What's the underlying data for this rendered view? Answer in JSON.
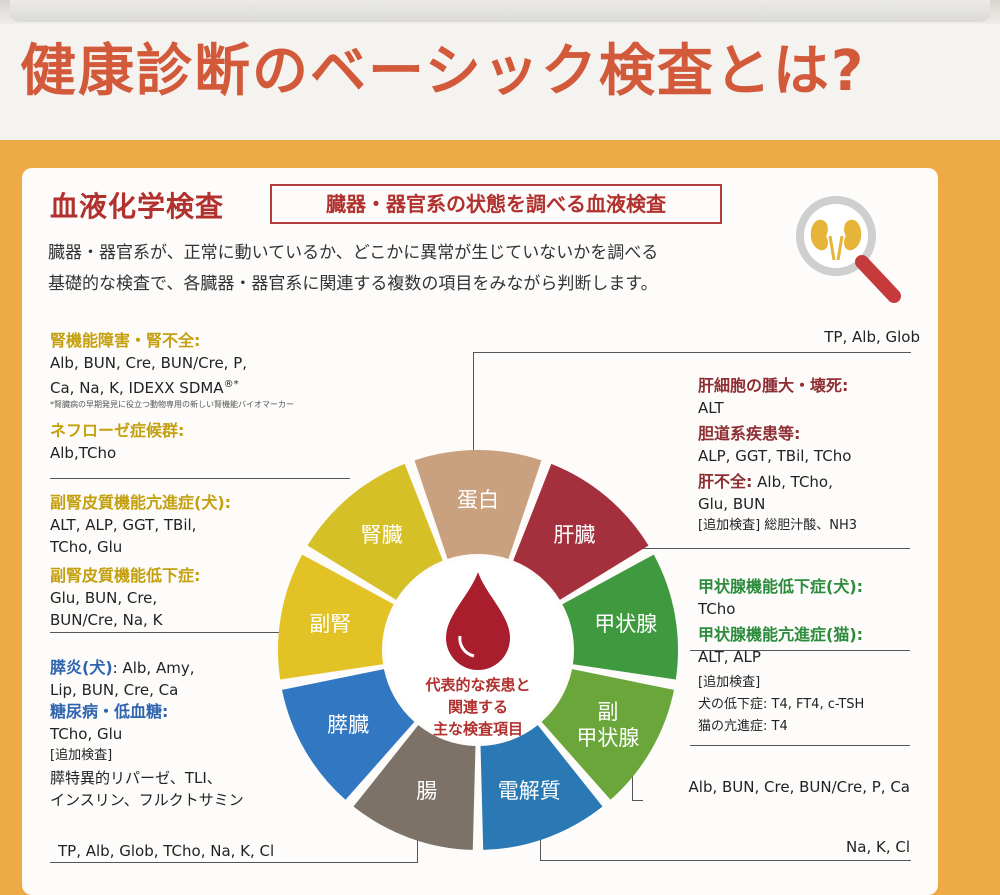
{
  "title": "健康診断のベーシック検査とは?",
  "section": {
    "title": "血液化学検査",
    "subtitle": "臓器・器官系の状態を調べる血液検査",
    "intro_line1": "臓器・器官系が、正常に動いているか、どこかに異常が生じていないかを調べる",
    "intro_line2": "基礎的な検査で、各臓器・器官系に関連する複数の項目をみながら判断します。"
  },
  "wheel": {
    "center_line1": "代表的な疾患と",
    "center_line2": "関連する",
    "center_line3": "主な検査項目",
    "segments": [
      {
        "label": "蛋白",
        "color": "#c9a17e"
      },
      {
        "label": "肝臓",
        "color": "#a5303d"
      },
      {
        "label": "甲状腺",
        "color": "#3f9a3f"
      },
      {
        "label": "副\n甲状腺",
        "color": "#6aa63a"
      },
      {
        "label": "電解質",
        "color": "#2a79b4"
      },
      {
        "label": "腸",
        "color": "#7c7268"
      },
      {
        "label": "膵臓",
        "color": "#3277c2"
      },
      {
        "label": "副腎",
        "color": "#e2c225"
      },
      {
        "label": "腎臓",
        "color": "#d6c028"
      }
    ]
  },
  "left": {
    "kidney_title": "腎機能障害・腎不全:",
    "kidney_items1": "Alb, BUN, Cre, BUN/Cre, P,",
    "kidney_items2": "Ca, Na, K, IDEXX SDMA",
    "kidney_reg": "®*",
    "kidney_note": "*腎臓病の早期発見に役立つ動物専用の新しい腎機能バイオマーカー",
    "nephrotic_title": "ネフローゼ症候群:",
    "nephrotic_items": "Alb,TCho",
    "adrenal_hyper_title": "副腎皮質機能亢進症(犬):",
    "adrenal_hyper_items1": "ALT, ALP, GGT, TBil,",
    "adrenal_hyper_items2": "TCho, Glu",
    "adrenal_hypo_title": "副腎皮質機能低下症:",
    "adrenal_hypo_items1": "Glu, BUN, Cre,",
    "adrenal_hypo_items2": "BUN/Cre, Na, K",
    "pancreatitis_title": "膵炎(犬)",
    "pancreatitis_items1": ": Alb, Amy,",
    "pancreatitis_items2": "Lip, BUN, Cre, Ca",
    "diabetes_title": "糖尿病・低血糖:",
    "diabetes_items": "TCho, Glu",
    "additional_label": "[追加検査]",
    "additional_items1": "膵特異的リパーゼ、TLI、",
    "additional_items2": "インスリン、フルクトサミン",
    "intestine_items": "TP, Alb, Glob, TCho, Na, K, Cl"
  },
  "right": {
    "protein_items": "TP, Alb, Glob",
    "liver_title1": "肝細胞の腫大・壊死:",
    "liver_items1": "ALT",
    "liver_title2": "胆道系疾患等:",
    "liver_items2": "ALP, GGT, TBil, TCho",
    "liver_title3": "肝不全:",
    "liver_items3a": " Alb, TCho,",
    "liver_items3b": "Glu, BUN",
    "liver_additional": "[追加検査] 総胆汁酸、NH3",
    "thyroid_title1": "甲状腺機能低下症(犬):",
    "thyroid_items1": "TCho",
    "thyroid_title2": "甲状腺機能亢進症(猫):",
    "thyroid_items2": "ALT, ALP",
    "thyroid_additional": "[追加検査]",
    "thyroid_dog": "犬の低下症: T4, FT4, c-TSH",
    "thyroid_cat": "猫の亢進症: T4",
    "parathyroid_items": "Alb, BUN, Cre, BUN/Cre, P, Ca",
    "electrolyte_items": "Na, K, Cl"
  },
  "colors": {
    "title": "#d2593a",
    "background_orange": "#eeaa46",
    "section_red": "#b1312f"
  },
  "icons": [
    "magnifier-kidney-icon",
    "blood-drop-icon"
  ]
}
